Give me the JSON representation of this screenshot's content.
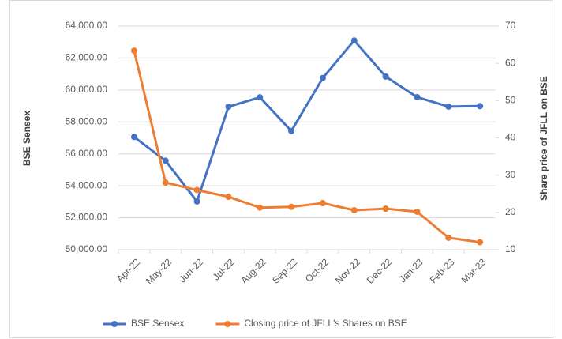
{
  "chart_data": {
    "type": "line",
    "y_label": "BSE Sensex",
    "y2_label": "Share price of JFLL on BSE",
    "categories": [
      "Apr-22",
      "May-22",
      "Jun-22",
      "Jul-22",
      "Aug-22",
      "Sep-22",
      "Oct-22",
      "Nov-22",
      "Dec-22",
      "Jan-23",
      "Feb-23",
      "Mar-23"
    ],
    "series": [
      {
        "name": "BSE Sensex",
        "color": "#4472c4",
        "values": [
          57060,
          55570,
          53020,
          58950,
          59540,
          57430,
          60750,
          63100,
          60840,
          59550,
          58960,
          58990
        ]
      },
      {
        "name": "Closing price of JFLL's Shares on BSE",
        "color": "#ed7d31",
        "axis": "y2",
        "values": [
          63.4,
          28,
          26,
          24.2,
          21.3,
          21.5,
          22.5,
          20.6,
          21,
          20.2,
          13.2,
          12
        ]
      }
    ],
    "ylim": [
      50000,
      64000
    ],
    "yticks": [
      {
        "value": 50000,
        "label": "50,000.00"
      },
      {
        "value": 52000,
        "label": "52,000.00"
      },
      {
        "value": 54000,
        "label": "54,000.00"
      },
      {
        "value": 56000,
        "label": "56,000.00"
      },
      {
        "value": 58000,
        "label": "58,000.00"
      },
      {
        "value": 60000,
        "label": "60,000.00"
      },
      {
        "value": 62000,
        "label": "62,000.00"
      },
      {
        "value": 64000,
        "label": "64,000.00"
      }
    ],
    "y2lim": [
      10,
      70
    ],
    "y2ticks": [
      10,
      20,
      30,
      40,
      50,
      60,
      70
    ],
    "grid": true,
    "legend": "bottom"
  }
}
